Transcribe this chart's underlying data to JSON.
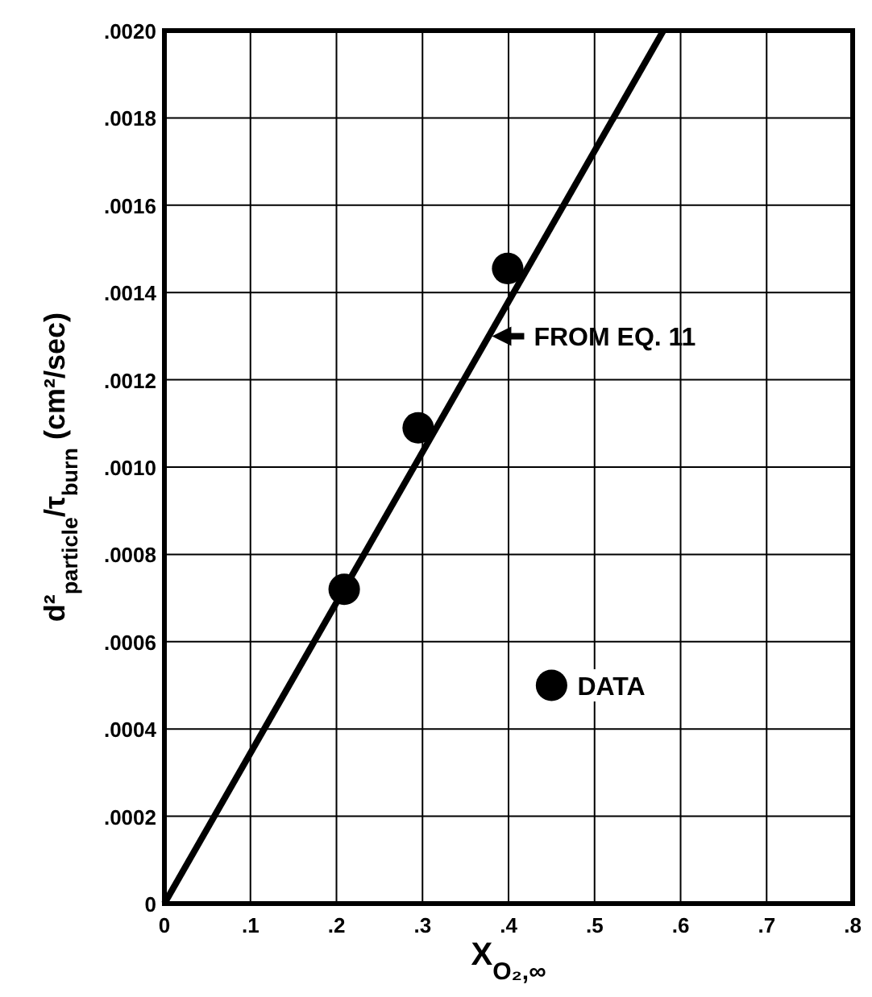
{
  "chart_data": {
    "type": "scatter",
    "xlabel": "X$_{O₂,∞}$",
    "ylabel": "d²$_{particle}$/τ$_{burn}$ (cm²/sec)",
    "xlim": [
      0,
      0.8
    ],
    "ylim": [
      0,
      0.002
    ],
    "xticks": [
      0,
      {
        "value": 0.1,
        "label": ".1"
      },
      {
        "value": 0.2,
        "label": ".2"
      },
      {
        "value": 0.3,
        "label": ".3"
      },
      {
        "value": 0.4,
        "label": ".4"
      },
      {
        "value": 0.5,
        "label": ".5"
      },
      {
        "value": 0.6,
        "label": ".6"
      },
      {
        "value": 0.7,
        "label": ".7"
      },
      {
        "value": 0.8,
        "label": ".8"
      }
    ],
    "yticks": [
      0,
      {
        "value": 0.0002,
        "label": ".0002"
      },
      {
        "value": 0.0004,
        "label": ".0004"
      },
      {
        "value": 0.0006,
        "label": ".0006"
      },
      {
        "value": 0.0008,
        "label": ".0008"
      },
      {
        "value": 0.001,
        "label": ".0010"
      },
      {
        "value": 0.0012,
        "label": ".0012"
      },
      {
        "value": 0.0014,
        "label": ".0014"
      },
      {
        "value": 0.0016,
        "label": ".0016"
      },
      {
        "value": 0.0018,
        "label": ".0018"
      },
      {
        "value": 0.002,
        "label": ".0020"
      }
    ],
    "grid": true,
    "legend": "bottom right",
    "series": [
      {
        "type": "line",
        "color": "#000000",
        "x": [
          0,
          0.58
        ],
        "values": [
          0,
          0.002
        ],
        "line_style": "solid"
      },
      {
        "name": "DATA",
        "marker": "circle",
        "color": "#000000",
        "x": [
          0.209,
          0.295,
          0.399
        ],
        "values": [
          0.00072,
          0.00109,
          0.001455
        ]
      }
    ],
    "annotations": [
      {
        "text": "FROM EQ. 11",
        "x": 0.377,
        "y": 0.0013
      }
    ]
  }
}
